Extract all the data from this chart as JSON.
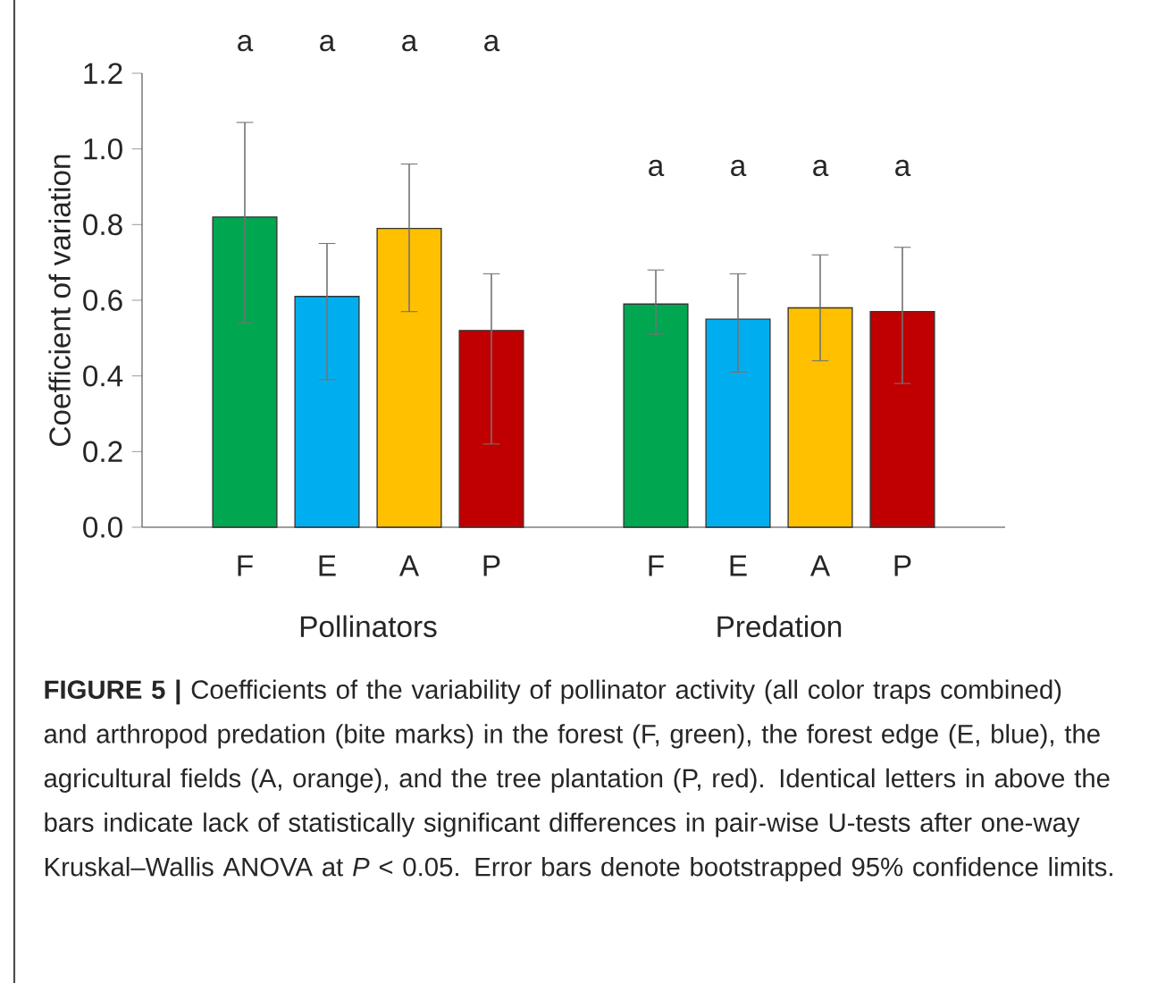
{
  "chart_data": {
    "type": "bar",
    "ylabel": "Coefficient of variation",
    "categories": [
      "F",
      "E",
      "A",
      "P",
      null,
      "F",
      "E",
      "A",
      "P"
    ],
    "values": [
      0.82,
      0.61,
      0.79,
      0.52,
      null,
      0.59,
      0.55,
      0.58,
      0.57
    ],
    "errors": [
      [
        0.54,
        1.07
      ],
      [
        0.39,
        0.75
      ],
      [
        0.57,
        0.96
      ],
      [
        0.22,
        0.67
      ],
      null,
      [
        0.51,
        0.68
      ],
      [
        0.41,
        0.67
      ],
      [
        0.44,
        0.72
      ],
      [
        0.38,
        0.74
      ]
    ],
    "colors": [
      "#00a650",
      "#00aeef",
      "#ffc000",
      "#c00000",
      null,
      "#00a650",
      "#00aeef",
      "#ffc000",
      "#c00000"
    ],
    "ylim": [
      0,
      1.2
    ],
    "yticks": [
      {
        "value": 0,
        "label": "0.0"
      },
      {
        "value": 0.2,
        "label": "0.2"
      },
      {
        "value": 0.4,
        "label": "0.4"
      },
      {
        "value": 0.6,
        "label": "0.6"
      },
      {
        "value": 0.8,
        "label": "0.8"
      },
      {
        "value": 1,
        "label": "1.0"
      },
      {
        "value": 1.2,
        "label": "1.2"
      }
    ],
    "grid": false,
    "annotations": [
      "a",
      "a",
      "a",
      "a",
      "a",
      "a",
      "a",
      "a",
      "Pollinators",
      "Predation",
      "**FIGURE 5 |** Coefficients of the variability of pollinator activity (all color traps combined) and arthropod predation (bite marks) in the forest (F, green), the forest edge (E, blue), the agricultural fields (A, orange), and the tree plantation (P, red). Identical letters in above the bars indicate lack of statistically significant differences in pair-wise U-tests after one-way Kruskal–Wallis ANOVA at *P* < 0.05. Error bars denote bootstrapped 95% confidence limits."
    ]
  }
}
